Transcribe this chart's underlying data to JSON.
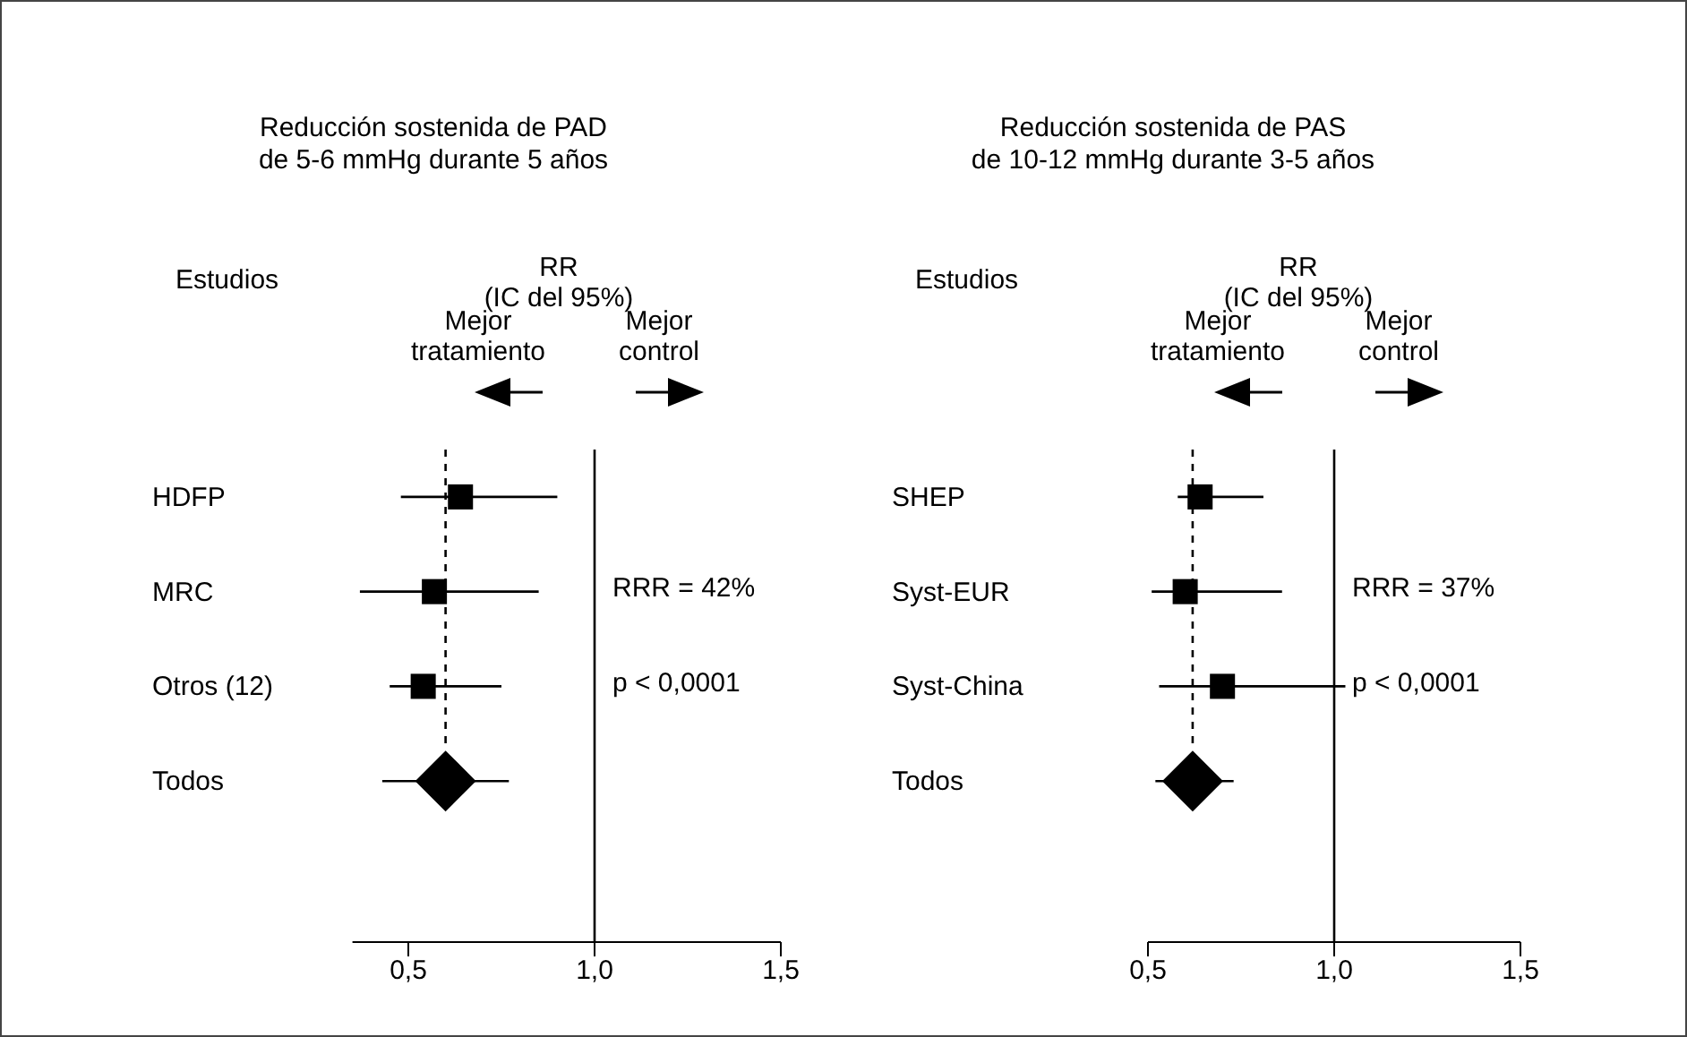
{
  "chart_data": [
    {
      "type": "scatter",
      "title": "Reducción sostenida de PAD\nde 5-6 mmHg durante 5 años",
      "ylabel": "Estudios",
      "xlabel": "RR\n(IC del 95%)",
      "orientation": "horizontal",
      "categories": [
        "HDFP",
        "MRC",
        "Otros (12)",
        "Todos"
      ],
      "series": [
        {
          "color": "#000000",
          "marker": "square",
          "values": [
            0.64,
            0.57,
            0.54,
            null
          ],
          "errors": [
            [
              0.48,
              0.9
            ],
            [
              0.37,
              0.85
            ],
            [
              0.45,
              0.75
            ],
            null
          ]
        },
        {
          "color": "#000000",
          "marker": "diamond",
          "values": [
            null,
            null,
            null,
            0.6
          ],
          "errors": [
            null,
            null,
            null,
            [
              0.43,
              0.77
            ]
          ]
        }
      ],
      "xlim": [
        0.35,
        1.5
      ],
      "xticks": [
        {
          "value": 0.5,
          "label": "0,5"
        },
        {
          "value": 1,
          "label": "1,0"
        },
        {
          "value": 1.5,
          "label": "1,5"
        }
      ],
      "ref_lines": [
        {
          "axis": "x",
          "value": 1,
          "line_style": "solid"
        },
        {
          "axis": "x",
          "value": 0.6,
          "line_style": "dashed"
        }
      ],
      "annotations": [
        "Mejor tratamiento",
        "Mejor control",
        "RRR = 42%",
        "p < 0,0001"
      ],
      "grid": false,
      "legend": false
    },
    {
      "type": "scatter",
      "title": "Reducción sostenida de PAS\nde 10-12 mmHg durante 3-5 años",
      "ylabel": "Estudios",
      "xlabel": "RR\n(IC del 95%)",
      "orientation": "horizontal",
      "categories": [
        "SHEP",
        "Syst-EUR",
        "Syst-China",
        "Todos"
      ],
      "series": [
        {
          "color": "#000000",
          "marker": "square",
          "values": [
            0.64,
            0.6,
            0.7,
            null
          ],
          "errors": [
            [
              0.58,
              0.81
            ],
            [
              0.51,
              0.86
            ],
            [
              0.53,
              1.03
            ],
            null
          ]
        },
        {
          "color": "#000000",
          "marker": "diamond",
          "values": [
            null,
            null,
            null,
            0.62
          ],
          "errors": [
            null,
            null,
            null,
            [
              0.52,
              0.73
            ]
          ]
        }
      ],
      "xlim": [
        0.5,
        1.5
      ],
      "xticks": [
        {
          "value": 0.5,
          "label": "0,5"
        },
        {
          "value": 1,
          "label": "1,0"
        },
        {
          "value": 1.5,
          "label": "1,5"
        }
      ],
      "ref_lines": [
        {
          "axis": "x",
          "value": 1,
          "line_style": "solid"
        },
        {
          "axis": "x",
          "value": 0.62,
          "line_style": "dashed"
        }
      ],
      "annotations": [
        "Mejor tratamiento",
        "Mejor control",
        "RRR = 37%",
        "p < 0,0001"
      ],
      "grid": false,
      "legend": false
    }
  ]
}
